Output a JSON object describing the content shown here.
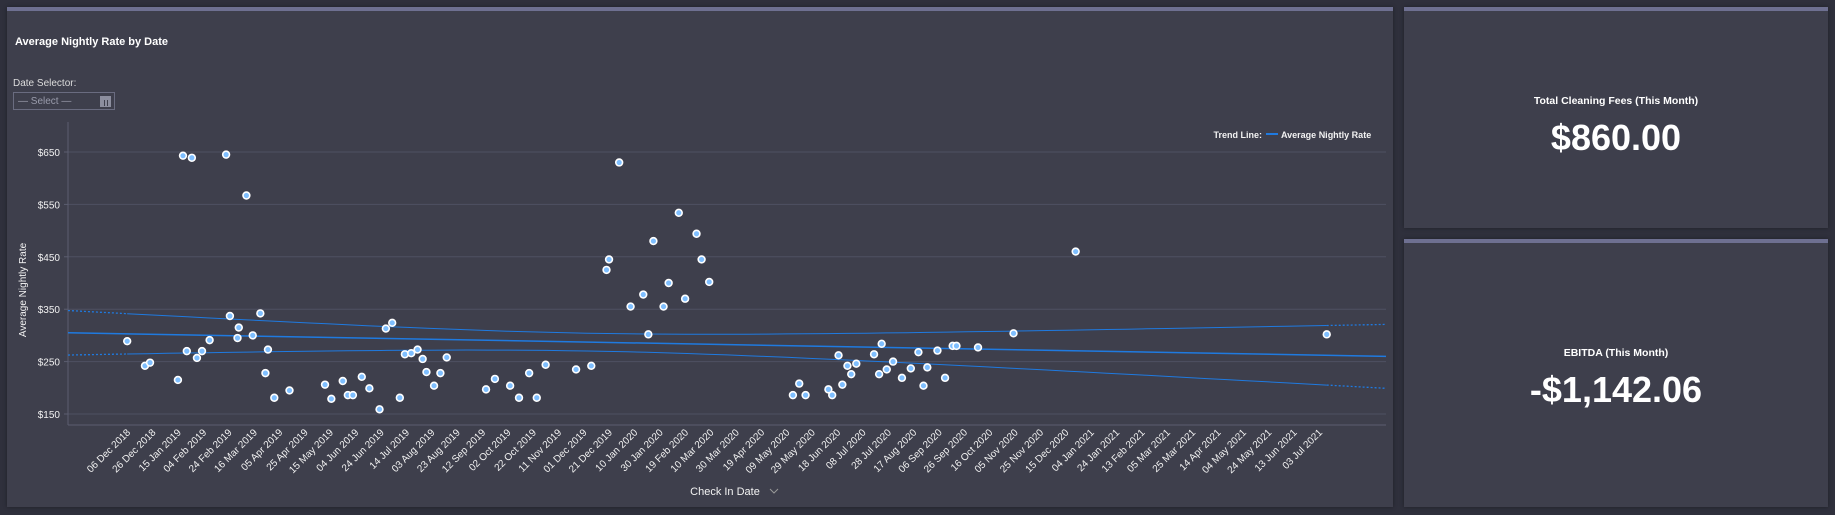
{
  "main": {
    "title": "Average Nightly Rate by Date",
    "date_selector_label": "Date Selector:",
    "date_selector_placeholder": "— Select —"
  },
  "kpis": [
    {
      "label": "Total Cleaning Fees (This Month)",
      "value": "$860.00"
    },
    {
      "label": "EBITDA (This Month)",
      "value": "-$1,142.06"
    }
  ],
  "colors": {
    "trend": "#1f7ae0",
    "point_fill": "#7fbfff",
    "point_stroke": "#ffffff"
  },
  "chart_data": {
    "type": "scatter",
    "title": "Average Nightly Rate by Date",
    "xlabel": "Check In Date",
    "ylabel": "Average Nightly Rate",
    "ylim": [
      150,
      650
    ],
    "yticks": [
      "$150",
      "$250",
      "$350",
      "$450",
      "$550",
      "$650"
    ],
    "ytick_values": [
      150,
      250,
      350,
      450,
      550,
      650
    ],
    "xlim": [
      "2018-12-06",
      "2021-07-03"
    ],
    "xticks": [
      "06 Dec 2018",
      "26 Dec 2018",
      "15 Jan 2019",
      "04 Feb 2019",
      "24 Feb 2019",
      "16 Mar 2019",
      "05 Apr 2019",
      "25 Apr 2019",
      "15 May 2019",
      "04 Jun 2019",
      "24 Jun 2019",
      "14 Jul 2019",
      "03 Aug 2019",
      "23 Aug 2019",
      "12 Sep 2019",
      "02 Oct 2019",
      "22 Oct 2019",
      "11 Nov 2019",
      "01 Dec 2019",
      "21 Dec 2019",
      "10 Jan 2020",
      "30 Jan 2020",
      "19 Feb 2020",
      "10 Mar 2020",
      "30 Mar 2020",
      "19 Apr 2020",
      "09 May 2020",
      "29 May 2020",
      "18 Jun 2020",
      "08 Jul 2020",
      "28 Jul 2020",
      "17 Aug 2020",
      "06 Sep 2020",
      "26 Sep 2020",
      "16 Oct 2020",
      "05 Nov 2020",
      "25 Nov 2020",
      "15 Dec 2020",
      "04 Jan 2021",
      "24 Jan 2021",
      "13 Feb 2021",
      "05 Mar 2021",
      "25 Mar 2021",
      "14 Apr 2021",
      "04 May 2021",
      "24 May 2021",
      "13 Jun 2021",
      "03 Jul 2021"
    ],
    "legend": {
      "title": "Trend Line:",
      "entry": "Average Nightly Rate",
      "placement": "top-right"
    },
    "trend": {
      "start_value": 305,
      "end_value": 260,
      "band_start": [
        262,
        347
      ],
      "band_end": [
        200,
        322
      ]
    },
    "points": [
      [
        "2018-12-03",
        289
      ],
      [
        "2018-12-17",
        242
      ],
      [
        "2018-12-21",
        248
      ],
      [
        "2019-01-12",
        215
      ],
      [
        "2019-01-16",
        643
      ],
      [
        "2019-01-19",
        270
      ],
      [
        "2019-01-23",
        639
      ],
      [
        "2019-01-27",
        257
      ],
      [
        "2019-01-31",
        270
      ],
      [
        "2019-02-06",
        291
      ],
      [
        "2019-02-19",
        645
      ],
      [
        "2019-02-22",
        337
      ],
      [
        "2019-02-28",
        295
      ],
      [
        "2019-03-01",
        315
      ],
      [
        "2019-03-07",
        567
      ],
      [
        "2019-03-12",
        300
      ],
      [
        "2019-03-18",
        342
      ],
      [
        "2019-03-22",
        228
      ],
      [
        "2019-03-24",
        273
      ],
      [
        "2019-03-29",
        181
      ],
      [
        "2019-04-10",
        195
      ],
      [
        "2019-05-08",
        206
      ],
      [
        "2019-05-13",
        179
      ],
      [
        "2019-05-22",
        213
      ],
      [
        "2019-05-26",
        186
      ],
      [
        "2019-05-30",
        186
      ],
      [
        "2019-06-06",
        221
      ],
      [
        "2019-06-12",
        199
      ],
      [
        "2019-06-20",
        159
      ],
      [
        "2019-06-25",
        313
      ],
      [
        "2019-06-30",
        324
      ],
      [
        "2019-07-06",
        181
      ],
      [
        "2019-07-10",
        264
      ],
      [
        "2019-07-15",
        266
      ],
      [
        "2019-07-20",
        273
      ],
      [
        "2019-07-24",
        255
      ],
      [
        "2019-07-27",
        230
      ],
      [
        "2019-08-02",
        204
      ],
      [
        "2019-08-07",
        228
      ],
      [
        "2019-08-12",
        258
      ],
      [
        "2019-09-12",
        197
      ],
      [
        "2019-09-19",
        217
      ],
      [
        "2019-10-01",
        204
      ],
      [
        "2019-10-08",
        181
      ],
      [
        "2019-10-16",
        228
      ],
      [
        "2019-10-22",
        181
      ],
      [
        "2019-10-29",
        244
      ],
      [
        "2019-11-22",
        235
      ],
      [
        "2019-12-04",
        242
      ],
      [
        "2019-12-16",
        425
      ],
      [
        "2019-12-18",
        445
      ],
      [
        "2019-12-26",
        630
      ],
      [
        "2020-01-04",
        355
      ],
      [
        "2020-01-14",
        378
      ],
      [
        "2020-01-18",
        302
      ],
      [
        "2020-01-22",
        480
      ],
      [
        "2020-01-30",
        355
      ],
      [
        "2020-02-03",
        400
      ],
      [
        "2020-02-11",
        534
      ],
      [
        "2020-02-16",
        370
      ],
      [
        "2020-02-25",
        494
      ],
      [
        "2020-02-29",
        445
      ],
      [
        "2020-03-06",
        402
      ],
      [
        "2020-05-11",
        186
      ],
      [
        "2020-05-16",
        208
      ],
      [
        "2020-05-21",
        186
      ],
      [
        "2020-06-08",
        197
      ],
      [
        "2020-06-11",
        186
      ],
      [
        "2020-06-16",
        262
      ],
      [
        "2020-06-19",
        206
      ],
      [
        "2020-06-23",
        242
      ],
      [
        "2020-06-26",
        226
      ],
      [
        "2020-06-30",
        246
      ],
      [
        "2020-07-14",
        264
      ],
      [
        "2020-07-18",
        226
      ],
      [
        "2020-07-20",
        284
      ],
      [
        "2020-07-24",
        235
      ],
      [
        "2020-07-29",
        250
      ],
      [
        "2020-08-05",
        219
      ],
      [
        "2020-08-12",
        237
      ],
      [
        "2020-08-18",
        268
      ],
      [
        "2020-08-22",
        204
      ],
      [
        "2020-08-25",
        239
      ],
      [
        "2020-09-02",
        271
      ],
      [
        "2020-09-08",
        219
      ],
      [
        "2020-09-14",
        280
      ],
      [
        "2020-09-17",
        280
      ],
      [
        "2020-10-04",
        277
      ],
      [
        "2020-11-01",
        304
      ],
      [
        "2020-12-20",
        460
      ],
      [
        "2021-07-06",
        302
      ]
    ]
  }
}
